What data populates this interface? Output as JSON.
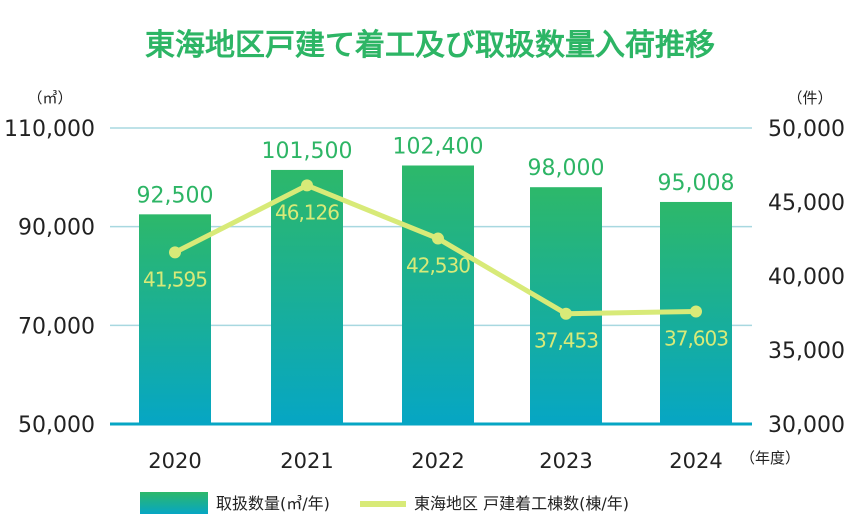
{
  "chart_data": {
    "type": "bar+line",
    "title": "東海地区戸建て着工及び取扱数量入荷推移",
    "left_unit": "（㎥）",
    "right_unit": "（件）",
    "x_unit": "（年度）",
    "categories": [
      "2020",
      "2021",
      "2022",
      "2023",
      "2024"
    ],
    "left_axis": {
      "range": [
        50000,
        110000
      ],
      "ticks": [
        50000,
        70000,
        90000,
        110000
      ],
      "tick_labels": [
        "50,000",
        "70,000",
        "90,000",
        "110,000"
      ]
    },
    "right_axis": {
      "range": [
        30000,
        50000
      ],
      "ticks": [
        30000,
        35000,
        40000,
        45000,
        50000
      ],
      "tick_labels": [
        "30,000",
        "35,000",
        "40,000",
        "45,000",
        "50,000"
      ]
    },
    "grid": true,
    "legend_position": "bottom",
    "series": [
      {
        "name": "取扱数量(㎥/年)",
        "type": "bar",
        "axis": "left",
        "values": [
          92500,
          101500,
          102400,
          98000,
          95008
        ],
        "labels": [
          "92,500",
          "101,500",
          "102,400",
          "98,000",
          "95,008"
        ],
        "color_top": "#2db86a",
        "color_bottom": "#06a6c4"
      },
      {
        "name": "東海地区 戸建着工棟数(棟/年)",
        "type": "line",
        "axis": "right",
        "values": [
          41595,
          46126,
          42530,
          37453,
          37603
        ],
        "labels": [
          "41,595",
          "46,126",
          "42,530",
          "37,453",
          "37,603"
        ],
        "color": "#d8ea78"
      }
    ],
    "colors": {
      "title": "#2db565",
      "bar_label": "#2db565",
      "grid": "#a8d8e0",
      "axis_text": "#222222"
    }
  }
}
